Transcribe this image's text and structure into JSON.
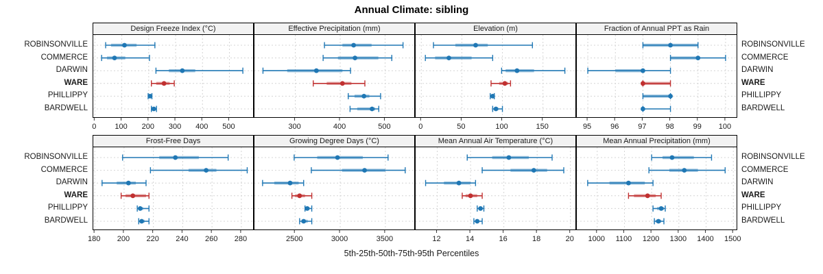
{
  "title": "Annual Climate: sibling",
  "caption": "5th-25th-50th-75th-95th Percentiles",
  "colors": {
    "series_normal": "#1f77b4",
    "series_highlight": "#c03030",
    "grid": "#d4d4d4",
    "strip_bg": "#f2f2f2",
    "panel_border": "#000000",
    "tick_text": "#1a1a1a"
  },
  "chart_data": {
    "type": "scatter",
    "subtype": "lattice-percentile-dotplot",
    "title": "Annual Climate: sibling",
    "xlabel": "5th-25th-50th-75th-95th Percentiles",
    "percentile_labels": [
      "5th",
      "25th",
      "50th",
      "75th",
      "95th"
    ],
    "categories": [
      "ROBINSONVILLE",
      "COMMERCE",
      "DARWIN",
      "WARE",
      "PHILLIPPY",
      "BARDWELL"
    ],
    "highlighted_category": "WARE",
    "grid": "dashed",
    "layout": {
      "rows": 2,
      "cols": 4
    },
    "panels": [
      {
        "title": "Design Freeze Index (°C)",
        "ticks": [
          0,
          100,
          200,
          300,
          400,
          500
        ],
        "xlim": [
          -6,
          588
        ],
        "series": [
          {
            "name": "ROBINSONVILLE",
            "values": [
              40,
              60,
              110,
              155,
              223
            ]
          },
          {
            "name": "COMMERCE",
            "values": [
              25,
              45,
              73,
              113,
              203
            ]
          },
          {
            "name": "DARWIN",
            "values": [
              227,
              275,
              325,
              373,
              550
            ]
          },
          {
            "name": "WARE",
            "values": [
              210,
              228,
              257,
              278,
              295
            ]
          },
          {
            "name": "PHILLIPPY",
            "values": [
              198,
              201,
              205,
              208,
              212
            ]
          },
          {
            "name": "BARDWELL",
            "values": [
              210,
              215,
              219,
              225,
              229
            ]
          }
        ]
      },
      {
        "title": "Effective Precipitation (mm)",
        "ticks": [
          300,
          400,
          500
        ],
        "xlim": [
          209,
          565
        ],
        "series": [
          {
            "name": "ROBINSONVILLE",
            "values": [
              365,
              405,
              430,
              470,
              540
            ]
          },
          {
            "name": "COMMERCE",
            "values": [
              362,
              395,
              433,
              485,
              515
            ]
          },
          {
            "name": "DARWIN",
            "values": [
              228,
              282,
              347,
              405,
              423
            ]
          },
          {
            "name": "WARE",
            "values": [
              340,
              370,
              405,
              425,
              455
            ]
          },
          {
            "name": "PHILLIPPY",
            "values": [
              418,
              432,
              453,
              465,
              490
            ]
          },
          {
            "name": "BARDWELL",
            "values": [
              422,
              438,
              471,
              478,
              486
            ]
          }
        ]
      },
      {
        "title": "Elevation (m)",
        "ticks": [
          0,
          50,
          100,
          150
        ],
        "xlim": [
          -7,
          190
        ],
        "series": [
          {
            "name": "ROBINSONVILLE",
            "values": [
              15,
              42,
              67,
              82,
              137
            ]
          },
          {
            "name": "COMMERCE",
            "values": [
              5,
              17,
              34,
              62,
              88
            ]
          },
          {
            "name": "DARWIN",
            "values": [
              99,
              104,
              118,
              139,
              177
            ]
          },
          {
            "name": "WARE",
            "values": [
              86,
              96,
              103,
              107,
              110
            ]
          },
          {
            "name": "PHILLIPPY",
            "values": [
              85,
              86,
              88,
              89,
              90
            ]
          },
          {
            "name": "BARDWELL",
            "values": [
              88,
              90,
              92,
              95,
              100
            ]
          }
        ]
      },
      {
        "title": "Fraction of Annual PPT as Rain",
        "ticks": [
          95,
          96,
          97,
          98,
          99,
          100
        ],
        "xlim": [
          94.6,
          100.4
        ],
        "series": [
          {
            "name": "ROBINSONVILLE",
            "values": [
              97,
              97,
              98,
              99,
              99
            ]
          },
          {
            "name": "COMMERCE",
            "values": [
              98,
              98,
              99,
              99,
              100
            ]
          },
          {
            "name": "DARWIN",
            "values": [
              95,
              96,
              97,
              97,
              98
            ]
          },
          {
            "name": "WARE",
            "values": [
              97,
              97,
              97,
              98,
              98
            ]
          },
          {
            "name": "PHILLIPPY",
            "values": [
              97,
              97,
              98,
              98,
              98
            ]
          },
          {
            "name": "BARDWELL",
            "values": [
              97,
              97,
              97,
              97,
              98
            ]
          }
        ]
      },
      {
        "title": "Frost-Free Days",
        "ticks": [
          180,
          200,
          220,
          240,
          260,
          280
        ],
        "xlim": [
          179,
          288
        ],
        "series": [
          {
            "name": "ROBINSONVILLE",
            "values": [
              199,
              224,
              235,
              251,
              271
            ]
          },
          {
            "name": "COMMERCE",
            "values": [
              218,
              244,
              256,
              263,
              284
            ]
          },
          {
            "name": "DARWIN",
            "values": [
              185,
              195,
              203,
              208,
              215
            ]
          },
          {
            "name": "WARE",
            "values": [
              198,
              201,
              206,
              215,
              217
            ]
          },
          {
            "name": "PHILLIPPY",
            "values": [
              209,
              210,
              211,
              213,
              217
            ]
          },
          {
            "name": "BARDWELL",
            "values": [
              210,
              211,
              212,
              214,
              217
            ]
          }
        ]
      },
      {
        "title": "Growing Degree Days (°C)",
        "ticks": [
          2500,
          3000,
          3500
        ],
        "xlim": [
          2050,
          3820
        ],
        "series": [
          {
            "name": "ROBINSONVILLE",
            "values": [
              2490,
              2745,
              2970,
              3250,
              3530
            ]
          },
          {
            "name": "COMMERCE",
            "values": [
              2680,
              3020,
              3270,
              3500,
              3720
            ]
          },
          {
            "name": "DARWIN",
            "values": [
              2140,
              2270,
              2445,
              2540,
              2595
            ]
          },
          {
            "name": "WARE",
            "values": [
              2465,
              2500,
              2550,
              2610,
              2685
            ]
          },
          {
            "name": "PHILLIPPY",
            "values": [
              2610,
              2620,
              2635,
              2660,
              2685
            ]
          },
          {
            "name": "BARDWELL",
            "values": [
              2550,
              2570,
              2595,
              2640,
              2685
            ]
          }
        ]
      },
      {
        "title": "Mean Annual Air Temperature (°C)",
        "ticks": [
          12,
          14,
          16,
          18,
          20
        ],
        "xlim": [
          10.7,
          20.3
        ],
        "series": [
          {
            "name": "ROBINSONVILLE",
            "values": [
              13.8,
              15.3,
              16.3,
              17.5,
              18.9
            ]
          },
          {
            "name": "COMMERCE",
            "values": [
              14.7,
              16.4,
              17.8,
              18.6,
              19.6
            ]
          },
          {
            "name": "DARWIN",
            "values": [
              11.3,
              12.4,
              13.3,
              14.0,
              14.3
            ]
          },
          {
            "name": "WARE",
            "values": [
              13.5,
              13.7,
              14.0,
              14.4,
              14.7
            ]
          },
          {
            "name": "PHILLIPPY",
            "values": [
              14.4,
              14.5,
              14.6,
              14.7,
              14.8
            ]
          },
          {
            "name": "BARDWELL",
            "values": [
              14.2,
              14.3,
              14.4,
              14.5,
              14.7
            ]
          }
        ]
      },
      {
        "title": "Mean Annual Precipitation (mm)",
        "ticks": [
          1000,
          1100,
          1200,
          1300,
          1400,
          1500
        ],
        "xlim": [
          925,
          1512
        ],
        "series": [
          {
            "name": "ROBINSONVILLE",
            "values": [
              1200,
              1240,
              1275,
              1355,
              1420
            ]
          },
          {
            "name": "COMMERCE",
            "values": [
              1190,
              1265,
              1320,
              1370,
              1470
            ]
          },
          {
            "name": "DARWIN",
            "values": [
              965,
              1045,
              1115,
              1175,
              1205
            ]
          },
          {
            "name": "WARE",
            "values": [
              1115,
              1135,
              1185,
              1215,
              1235
            ]
          },
          {
            "name": "PHILLIPPY",
            "values": [
              1205,
              1220,
              1235,
              1245,
              1250
            ]
          },
          {
            "name": "BARDWELL",
            "values": [
              1210,
              1215,
              1225,
              1235,
              1245
            ]
          }
        ]
      }
    ]
  }
}
